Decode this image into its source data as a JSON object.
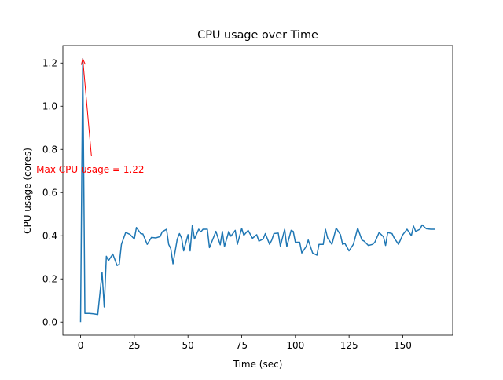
{
  "chart_data": {
    "type": "line",
    "title": "CPU usage over Time",
    "xlabel": "Time (sec)",
    "ylabel": "CPU usage (cores)",
    "xlim": [
      -8.25,
      173.25
    ],
    "ylim": [
      -0.061,
      1.281
    ],
    "xticks": [
      0,
      25,
      50,
      75,
      100,
      125,
      150
    ],
    "yticks": [
      0.0,
      0.2,
      0.4,
      0.6,
      0.8,
      1.0,
      1.2
    ],
    "grid": false,
    "colors": {
      "line": "#1f77b4",
      "annotation": "#ff0000",
      "axes": "#000000"
    },
    "annotation": {
      "text": "Max CPU usage = 1.22",
      "point": [
        1,
        1.22
      ],
      "text_pos": [
        4.5,
        0.75
      ]
    },
    "series": [
      {
        "x": [
          0,
          1,
          2,
          4,
          6,
          8,
          10,
          11,
          12,
          13,
          15,
          17,
          18,
          19,
          21,
          23,
          25,
          26,
          28,
          29,
          31,
          33,
          35,
          37,
          38,
          40,
          41,
          42,
          43,
          45,
          46,
          47,
          48,
          50,
          51,
          52,
          53,
          55,
          56,
          57,
          59,
          60,
          62,
          63,
          65,
          66,
          67,
          69,
          70,
          72,
          73,
          75,
          76,
          78,
          80,
          82,
          83,
          85,
          86,
          88,
          89,
          90,
          92,
          93,
          95,
          96,
          98,
          99,
          100,
          102,
          103,
          105,
          106,
          108,
          110,
          111,
          113,
          114,
          115,
          117,
          119,
          121,
          122,
          123,
          125,
          127,
          129,
          131,
          132,
          134,
          136,
          137,
          139,
          141,
          142,
          143,
          145,
          146,
          148,
          150,
          152,
          154,
          155,
          156,
          158,
          159,
          161,
          163,
          165
        ],
        "y": [
          0.0,
          1.22,
          0.04,
          0.04,
          0.038,
          0.035,
          0.23,
          0.07,
          0.305,
          0.285,
          0.315,
          0.262,
          0.268,
          0.36,
          0.415,
          0.406,
          0.385,
          0.438,
          0.41,
          0.408,
          0.36,
          0.392,
          0.39,
          0.396,
          0.418,
          0.43,
          0.36,
          0.34,
          0.27,
          0.384,
          0.41,
          0.39,
          0.33,
          0.405,
          0.33,
          0.448,
          0.385,
          0.43,
          0.418,
          0.43,
          0.43,
          0.345,
          0.395,
          0.42,
          0.358,
          0.42,
          0.35,
          0.42,
          0.398,
          0.425,
          0.36,
          0.434,
          0.402,
          0.425,
          0.388,
          0.405,
          0.375,
          0.385,
          0.41,
          0.36,
          0.38,
          0.41,
          0.412,
          0.352,
          0.43,
          0.35,
          0.425,
          0.42,
          0.37,
          0.37,
          0.32,
          0.35,
          0.38,
          0.32,
          0.31,
          0.36,
          0.36,
          0.43,
          0.39,
          0.36,
          0.435,
          0.405,
          0.36,
          0.365,
          0.33,
          0.36,
          0.435,
          0.38,
          0.375,
          0.355,
          0.36,
          0.37,
          0.415,
          0.395,
          0.355,
          0.415,
          0.41,
          0.39,
          0.36,
          0.405,
          0.43,
          0.4,
          0.445,
          0.42,
          0.43,
          0.45,
          0.432,
          0.43,
          0.43
        ]
      }
    ]
  }
}
